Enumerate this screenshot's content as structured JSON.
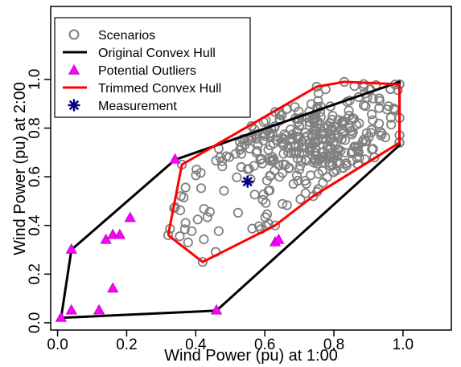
{
  "chart_data": {
    "type": "scatter",
    "xlabel": "Wind Power (pu) at 1:00",
    "ylabel": "Wind Power (pu) at 2:00",
    "xlim": [
      -0.02,
      1.14
    ],
    "ylim": [
      -0.03,
      1.3
    ],
    "xticks": [
      "0.0",
      "0.2",
      "0.4",
      "0.6",
      "0.8",
      "1.0"
    ],
    "xtick_values": [
      0,
      0.2,
      0.4,
      0.6,
      0.8,
      1.0
    ],
    "yticks": [
      "0.0",
      "0.2",
      "0.4",
      "0.6",
      "0.8",
      "1.0"
    ],
    "ytick_values": [
      0,
      0.2,
      0.4,
      0.6,
      0.8,
      1.0
    ],
    "grid": false,
    "legend_position": "top-left",
    "legend": [
      {
        "label": "Scenarios",
        "marker": "circle",
        "color": "#808080"
      },
      {
        "label": "Original Convex Hull",
        "marker": "line",
        "color": "#000000"
      },
      {
        "label": "Potential Outliers",
        "marker": "triangle",
        "color": "#ff00ff"
      },
      {
        "label": "Trimmed Convex Hull",
        "marker": "line",
        "color": "#ff0000"
      },
      {
        "label": "Measurement",
        "marker": "asterisk",
        "color": "#000080"
      }
    ],
    "original_hull": [
      [
        0.01,
        0.02
      ],
      [
        0.04,
        0.3
      ],
      [
        0.34,
        0.67
      ],
      [
        0.99,
        0.99
      ],
      [
        0.99,
        0.73
      ],
      [
        0.46,
        0.05
      ],
      [
        0.01,
        0.02
      ]
    ],
    "trimmed_hull": [
      [
        0.32,
        0.36
      ],
      [
        0.36,
        0.65
      ],
      [
        0.75,
        0.97
      ],
      [
        0.83,
        0.99
      ],
      [
        0.99,
        0.98
      ],
      [
        0.99,
        0.74
      ],
      [
        0.74,
        0.52
      ],
      [
        0.63,
        0.4
      ],
      [
        0.42,
        0.25
      ],
      [
        0.32,
        0.36
      ]
    ],
    "outliers": [
      [
        0.01,
        0.02
      ],
      [
        0.04,
        0.3
      ],
      [
        0.04,
        0.05
      ],
      [
        0.12,
        0.05
      ],
      [
        0.16,
        0.14
      ],
      [
        0.14,
        0.34
      ],
      [
        0.16,
        0.36
      ],
      [
        0.18,
        0.36
      ],
      [
        0.21,
        0.43
      ],
      [
        0.34,
        0.67
      ],
      [
        0.46,
        0.05
      ],
      [
        0.63,
        0.33
      ],
      [
        0.64,
        0.34
      ]
    ],
    "measurement": [
      0.55,
      0.58
    ],
    "scenarios_cluster": {
      "count": 380,
      "center": [
        0.74,
        0.73
      ],
      "spread": [
        0.11,
        0.1
      ]
    }
  }
}
